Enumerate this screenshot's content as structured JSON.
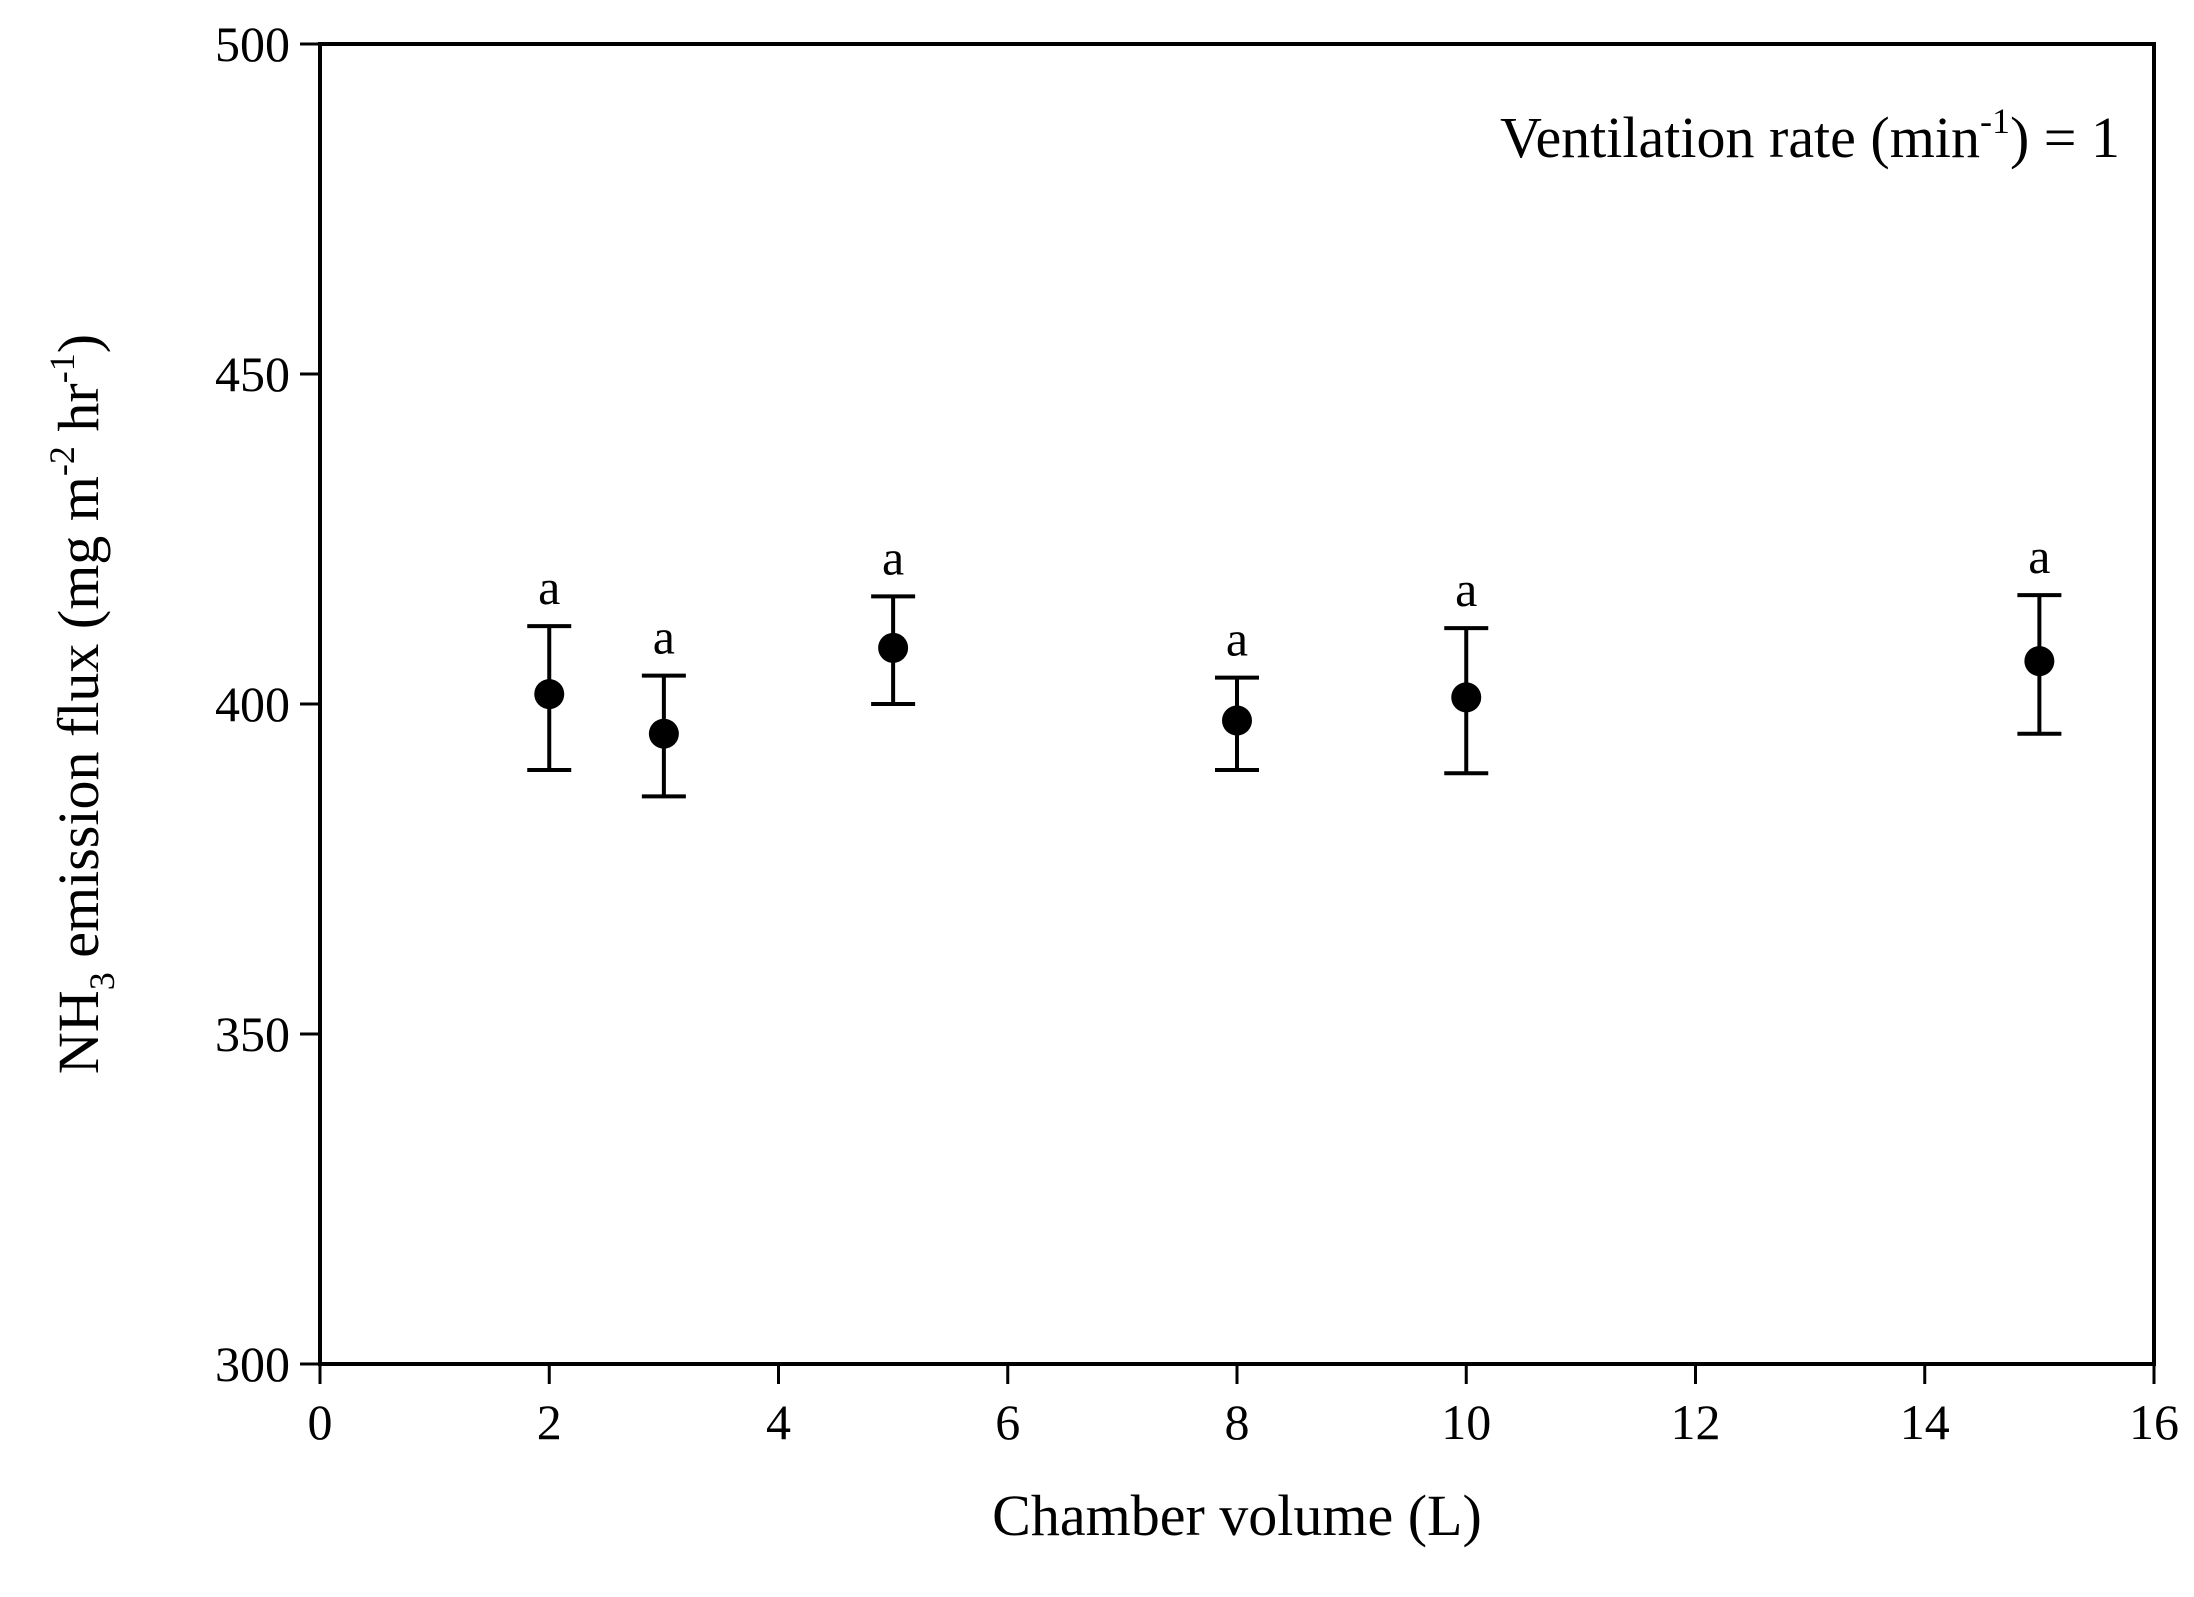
{
  "chart_data": {
    "type": "scatter",
    "title": "",
    "annotation": {
      "prefix": "Ventilation rate (min",
      "superscript": "-1",
      "suffix": ") = 1"
    },
    "xlabel": "Chamber volume (L)",
    "ylabel_parts": {
      "p1": "NH",
      "sub": "3",
      "p2": " emission flux (mg m",
      "sup1": "-2",
      "p3": " hr",
      "sup2": "-1",
      "p4": ")"
    },
    "xlim": [
      0,
      16
    ],
    "ylim": [
      300,
      500
    ],
    "x_ticks": [
      "0",
      "2",
      "4",
      "6",
      "8",
      "10",
      "12",
      "14",
      "16"
    ],
    "y_ticks": [
      "300",
      "350",
      "400",
      "450",
      "500"
    ],
    "grid": false,
    "series": [
      {
        "name": "NH3 emission flux",
        "points": [
          {
            "x": 2,
            "y": 401.5,
            "err_low": 390.0,
            "err_high": 411.8,
            "label": "a"
          },
          {
            "x": 3,
            "y": 395.5,
            "err_low": 386.0,
            "err_high": 404.3,
            "label": "a"
          },
          {
            "x": 5,
            "y": 408.5,
            "err_low": 400.0,
            "err_high": 416.3,
            "label": "a"
          },
          {
            "x": 8,
            "y": 397.5,
            "err_low": 390.0,
            "err_high": 404.0,
            "label": "a"
          },
          {
            "x": 10,
            "y": 401.0,
            "err_low": 389.5,
            "err_high": 411.5,
            "label": "a"
          },
          {
            "x": 15,
            "y": 406.5,
            "err_low": 395.5,
            "err_high": 416.5,
            "label": "a"
          }
        ]
      }
    ]
  }
}
